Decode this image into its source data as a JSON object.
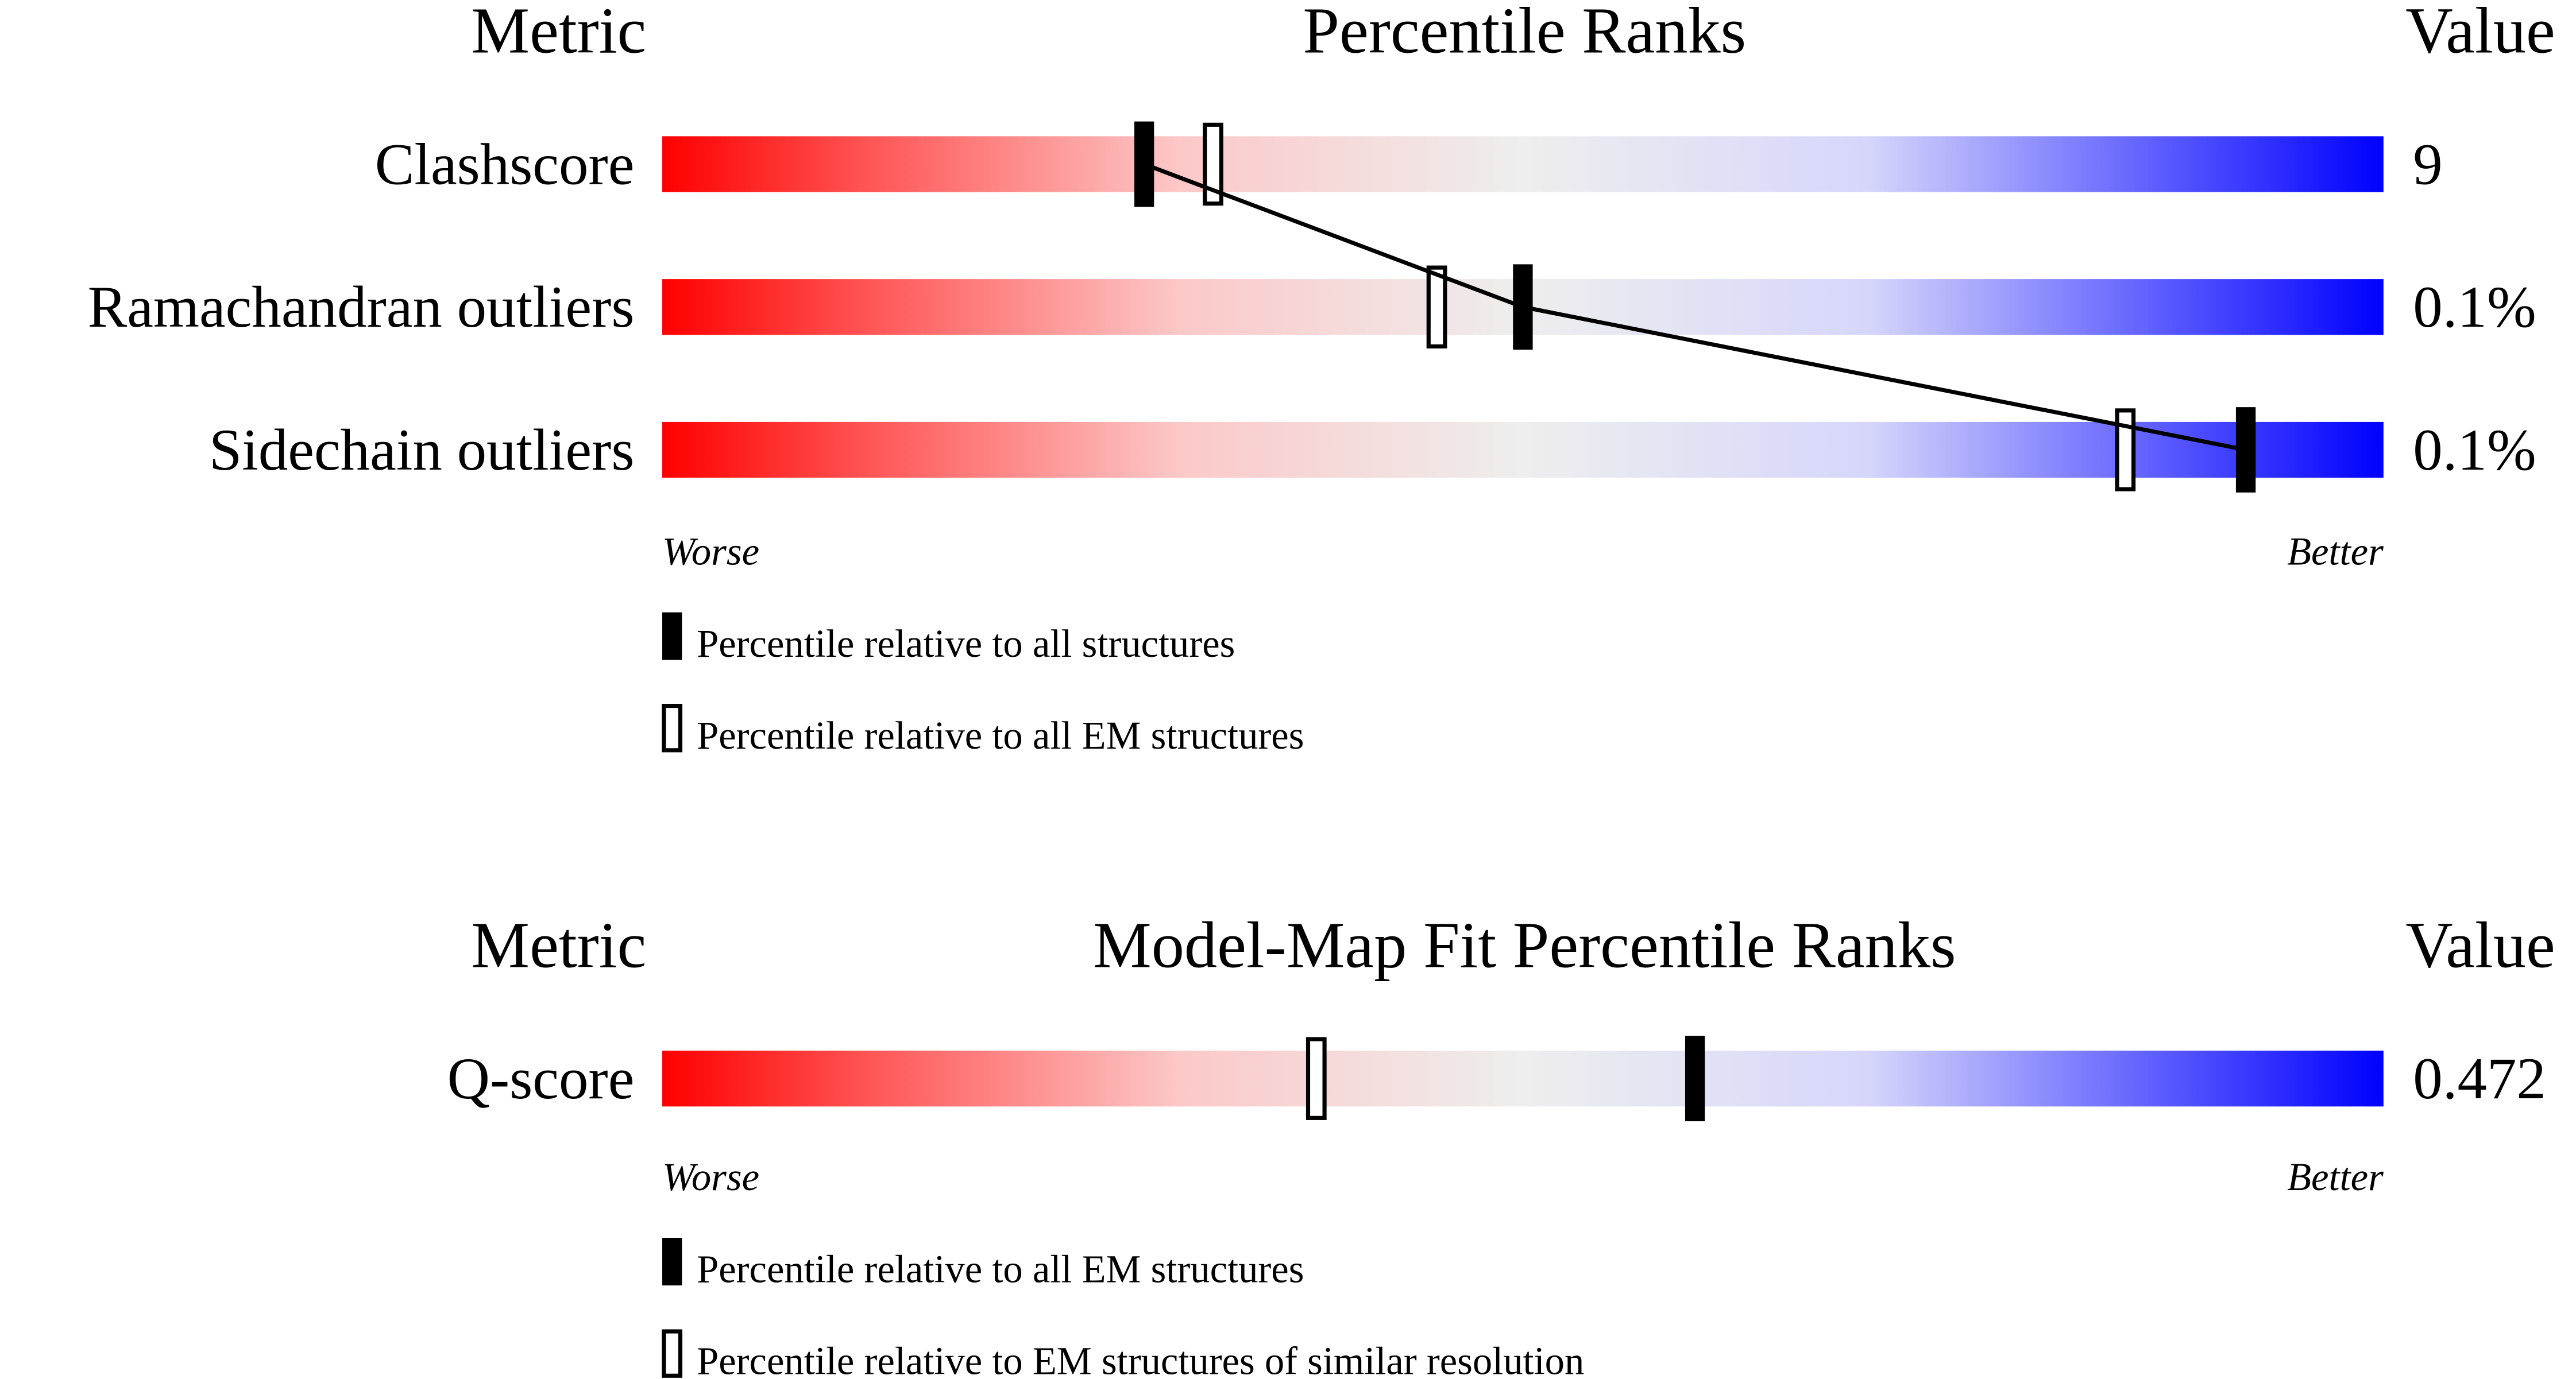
{
  "colors": {
    "worse": "#ff0000",
    "mid": "#eeeeee",
    "better": "#0000ff",
    "marker": "#000000"
  },
  "chart_data": [
    {
      "type": "percentile-bar",
      "headers": {
        "metric": "Metric",
        "title": "Percentile Ranks",
        "value": "Value"
      },
      "axis": {
        "left": "Worse",
        "right": "Better",
        "range": [
          0,
          100
        ]
      },
      "rows": [
        {
          "metric": "Clashscore",
          "value": "9",
          "percentile_all": 28,
          "percentile_secondary": 32
        },
        {
          "metric": "Ramachandran outliers",
          "value": "0.1%",
          "percentile_all": 50,
          "percentile_secondary": 45
        },
        {
          "metric": "Sidechain outliers",
          "value": "0.1%",
          "percentile_all": 92,
          "percentile_secondary": 85
        }
      ],
      "connect_filled_markers": true,
      "legend": {
        "filled": "Percentile relative to all structures",
        "open": "Percentile relative to all EM structures"
      }
    },
    {
      "type": "percentile-bar",
      "headers": {
        "metric": "Metric",
        "title": "Model-Map Fit Percentile Ranks",
        "value": "Value"
      },
      "axis": {
        "left": "Worse",
        "right": "Better",
        "range": [
          0,
          100
        ]
      },
      "rows": [
        {
          "metric": "Q-score",
          "value": "0.472",
          "percentile_all": 60,
          "percentile_secondary": 38
        }
      ],
      "connect_filled_markers": false,
      "legend": {
        "filled": "Percentile relative to all EM structures",
        "open": "Percentile relative to EM structures of similar resolution"
      }
    }
  ]
}
